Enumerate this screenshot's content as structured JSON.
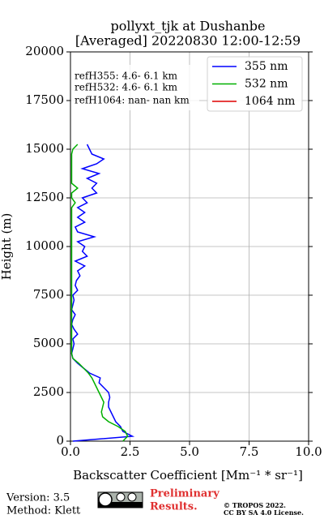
{
  "chart_data": {
    "type": "line",
    "title": [
      "pollyxt_tjk at Dushanbe",
      "[Averaged] 20220830 12:00-12:59"
    ],
    "x_label": "Backscatter Coefficient [Mm⁻¹ * sr⁻¹]",
    "y_label": "Height (m)",
    "xlim": [
      0,
      10
    ],
    "xticks": [
      {
        "value": 0,
        "label": "0.0"
      },
      {
        "value": 2.5,
        "label": "2.5"
      },
      {
        "value": 5,
        "label": "5.0"
      },
      {
        "value": 7.5,
        "label": "7.5"
      },
      {
        "value": 10,
        "label": "10.0"
      }
    ],
    "ylim": [
      0,
      20000
    ],
    "yticks": [
      0,
      2500,
      5000,
      7500,
      10000,
      12500,
      15000,
      17500,
      20000
    ],
    "grid": true,
    "legend": "upper right",
    "annotations": [
      "refH355:  4.6- 6.1 km",
      "refH532:  4.6- 6.1 km",
      "refH1064:  nan- nan km"
    ],
    "y": [
      0,
      250,
      500,
      750,
      1000,
      1250,
      1500,
      1750,
      2000,
      2250,
      2500,
      2750,
      3000,
      3250,
      3500,
      3750,
      4000,
      4250,
      4500,
      4750,
      5000,
      5250,
      5500,
      5750,
      6000,
      6250,
      6500,
      6750,
      7000,
      7250,
      7500,
      7750,
      8000,
      8250,
      8500,
      8750,
      9000,
      9250,
      9500,
      9750,
      10000,
      10250,
      10500,
      10750,
      11000,
      11250,
      11500,
      11750,
      12000,
      12250,
      12500,
      12750,
      13000,
      13250,
      13500,
      13750,
      14000,
      14250,
      14500,
      14750,
      15000,
      15250
    ],
    "series": [
      {
        "name": "355 nm",
        "color": "#0000ff",
        "values": [
          0.1,
          2.6,
          2.2,
          2.1,
          1.9,
          1.8,
          1.7,
          1.6,
          1.6,
          1.65,
          1.6,
          1.4,
          1.2,
          1.25,
          0.8,
          0.55,
          0.3,
          0.1,
          0.05,
          0.1,
          0.15,
          0.1,
          0.3,
          0.15,
          0.05,
          0.1,
          0.2,
          0.05,
          0.1,
          0.15,
          0.1,
          0.3,
          0.2,
          0.25,
          0.4,
          0.3,
          0.6,
          0.2,
          0.7,
          0.5,
          0.6,
          0.3,
          1.0,
          0.3,
          0.2,
          0.6,
          0.3,
          0.6,
          0.3,
          0.7,
          0.5,
          1.1,
          0.9,
          1.1,
          0.7,
          1.2,
          0.5,
          1.1,
          1.4,
          0.9,
          0.8,
          0.7
        ]
      },
      {
        "name": "532 nm",
        "color": "#00b000",
        "values": [
          2.2,
          2.4,
          2.3,
          2.0,
          1.6,
          1.35,
          1.3,
          1.35,
          1.4,
          1.3,
          1.2,
          1.1,
          1.0,
          0.9,
          0.75,
          0.55,
          0.35,
          0.1,
          0.05,
          0.05,
          0.05,
          0.05,
          0.05,
          0.05,
          0.05,
          0.05,
          0.05,
          0.05,
          0.05,
          0.05,
          0.05,
          0.05,
          0.05,
          0.05,
          0.05,
          0.05,
          0.05,
          0.05,
          0.05,
          0.05,
          0.05,
          0.05,
          0.05,
          0.05,
          0.05,
          0.05,
          0.05,
          0.05,
          0.05,
          0.2,
          0.05,
          0.05,
          0.3,
          0.05,
          0.05,
          0.05,
          0.05,
          0.05,
          0.05,
          0.05,
          0.1,
          0.3
        ]
      },
      {
        "name": "1064 nm",
        "color": "#e00000",
        "values": [
          null,
          null,
          null,
          null,
          null,
          null,
          null,
          null,
          null,
          null,
          null,
          null,
          null,
          null,
          null,
          null,
          null,
          null,
          null,
          null,
          null,
          null,
          null,
          null,
          null,
          null,
          null,
          null,
          null,
          null,
          null,
          null,
          null,
          null,
          null,
          null,
          null,
          null,
          null,
          null,
          null,
          null,
          null,
          null,
          null,
          null,
          null,
          null,
          null,
          null,
          null,
          null,
          null,
          null,
          null,
          null,
          null,
          null,
          null,
          null,
          null,
          null
        ]
      }
    ]
  },
  "footer": {
    "version": "Version: 3.5",
    "method": "Method: Klett",
    "preliminary": [
      "Preliminary",
      "Results."
    ],
    "copyright": [
      "© TROPOS 2022.",
      "CC BY SA 4.0 License."
    ]
  }
}
